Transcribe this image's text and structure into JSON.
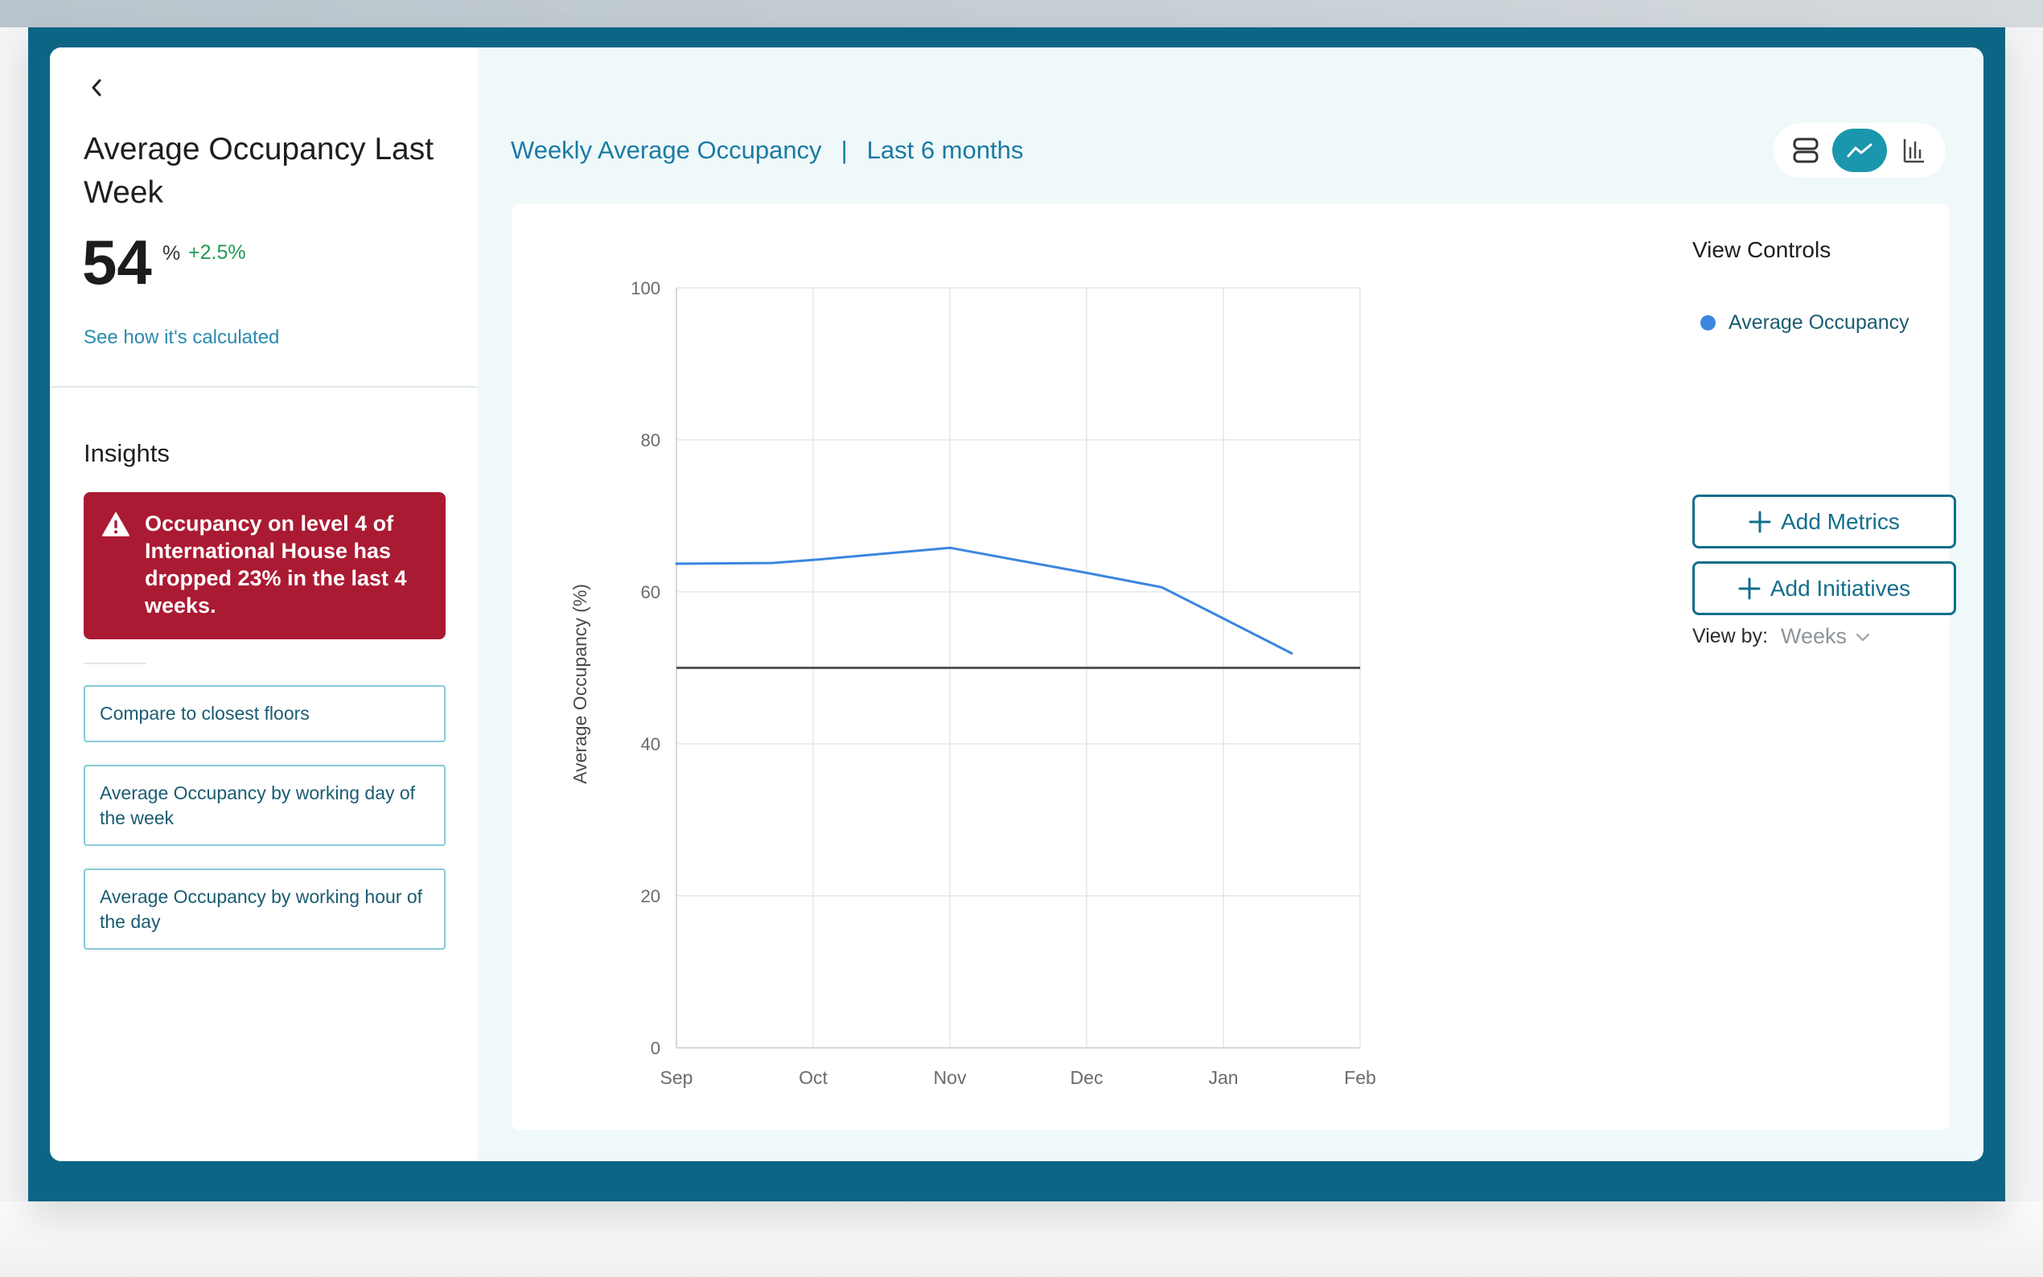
{
  "sidebar": {
    "kpi_title": "Average Occupancy Last Week",
    "kpi_value": "54",
    "kpi_unit": "%",
    "kpi_delta": "+2.5%",
    "calc_link": "See how it's calculated",
    "insights_title": "Insights",
    "alert_text": "Occupancy on level 4 of International House has dropped 23% in the last 4 weeks.",
    "insight_buttons": [
      "Compare to closest floors",
      "Average Occupancy by working day of the week",
      "Average Occupancy by working hour of the day"
    ]
  },
  "header": {
    "title": "Weekly Average Occupancy",
    "separator": "|",
    "period": "Last 6 months"
  },
  "view_switch": {
    "options": [
      "table-view-icon",
      "line-chart-icon",
      "bar-chart-icon"
    ],
    "active": "line-chart-icon"
  },
  "controls": {
    "title": "View Controls",
    "legend_label": "Average Occupancy",
    "add_metrics": "Add Metrics",
    "add_initiatives": "Add Initiatives",
    "view_by_label": "View by:",
    "view_by_value": "Weeks"
  },
  "colors": {
    "frame": "#0d6585",
    "accent": "#1a97ad",
    "alert": "#ab1a33",
    "series": "#3a86e0",
    "positive": "#1f9a55",
    "reference_line": "#555555"
  },
  "chart_data": {
    "type": "line",
    "xlabel": "",
    "ylabel": "Average Occupancy (%)",
    "x_ticks": [
      "Sep",
      "Oct",
      "Nov",
      "Dec",
      "Jan",
      "Feb"
    ],
    "y_ticks": [
      0,
      20,
      40,
      60,
      80,
      100
    ],
    "ylim": [
      0,
      100
    ],
    "grid": true,
    "legend_position": "right",
    "series": [
      {
        "name": "Average Occupancy",
        "points": [
          {
            "x": 0,
            "y": 63.7
          },
          {
            "x": 0.7,
            "y": 63.8
          },
          {
            "x": 1.0,
            "y": 64.2
          },
          {
            "x": 2.0,
            "y": 65.8
          },
          {
            "x": 3.0,
            "y": 62.5
          },
          {
            "x": 3.55,
            "y": 60.6
          },
          {
            "x": 4.0,
            "y": 56.5
          },
          {
            "x": 4.5,
            "y": 51.9
          }
        ]
      }
    ],
    "reference_lines": [
      {
        "y": 50
      }
    ]
  }
}
